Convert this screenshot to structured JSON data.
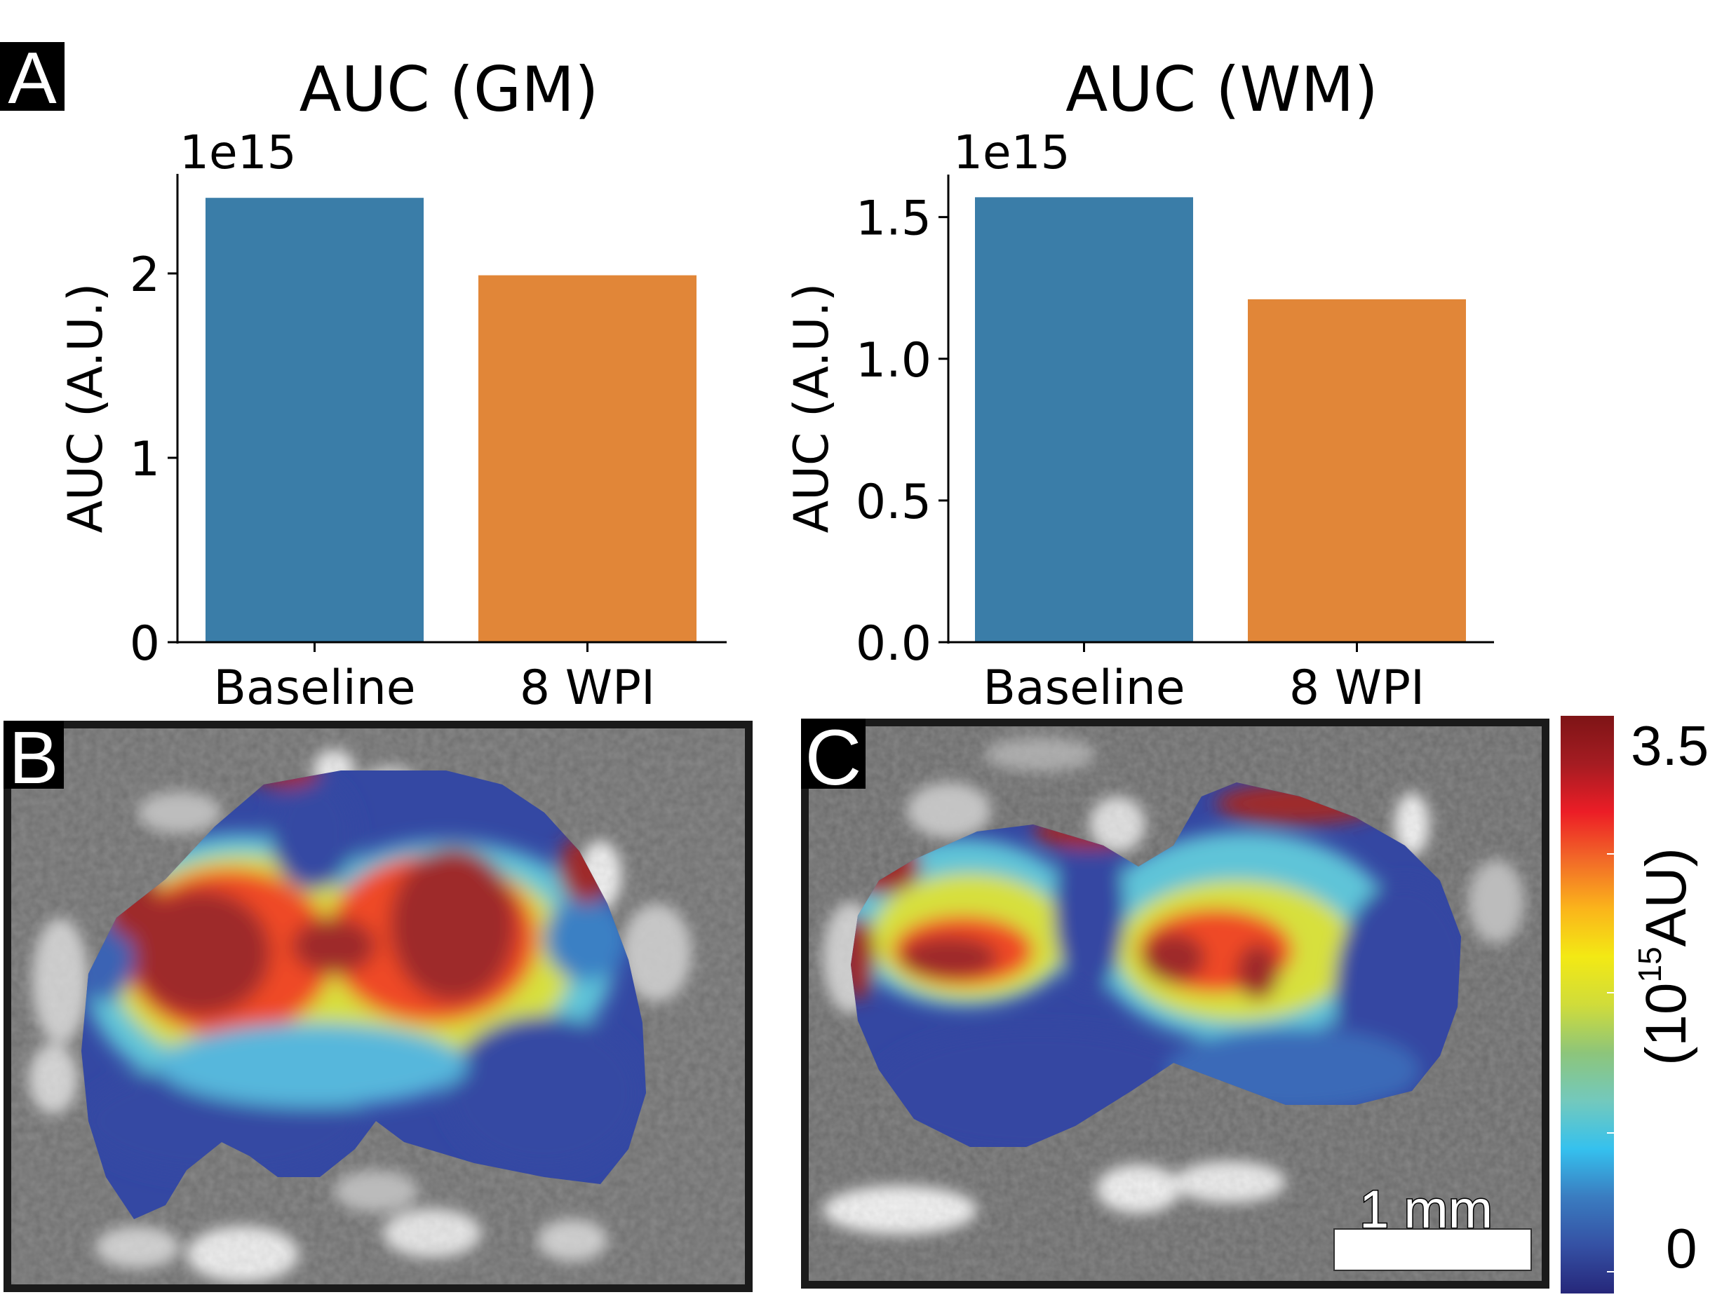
{
  "figure": {
    "panel_labels": {
      "a": "A",
      "b": "B",
      "c": "C"
    },
    "colors": {
      "baseline": "#3a7da8",
      "wpi": "#e18638",
      "axis": "#000000",
      "panel_border": "#1a1a1a"
    }
  },
  "chart_data": [
    {
      "type": "bar",
      "title": "AUC (GM)",
      "ylabel": "AUC (A.U.)",
      "xlabel": "",
      "offset_label": "1e15",
      "categories": [
        "Baseline",
        "8 WPI"
      ],
      "values": [
        2.41,
        1.99
      ],
      "value_multiplier": 1000000000000000.0,
      "ylim": [
        0,
        2.54
      ],
      "yticks": [
        0,
        1,
        2
      ],
      "ytick_labels": [
        "0",
        "1",
        "2"
      ],
      "grid": false,
      "bar_colors": [
        "#3a7da8",
        "#e18638"
      ]
    },
    {
      "type": "bar",
      "title": "AUC (WM)",
      "ylabel": "AUC (A.U.)",
      "xlabel": "",
      "offset_label": "1e15",
      "categories": [
        "Baseline",
        "8 WPI"
      ],
      "values": [
        1.57,
        1.21
      ],
      "value_multiplier": 1000000000000000.0,
      "ylim": [
        0,
        1.65
      ],
      "yticks": [
        0,
        0.5,
        1.0,
        1.5
      ],
      "ytick_labels": [
        "0.0",
        "0.5",
        "1.0",
        "1.5"
      ],
      "grid": false,
      "bar_colors": [
        "#3a7da8",
        "#e18638"
      ]
    }
  ],
  "maps": {
    "b": {
      "description": "AUC heat map overlay on grayscale image (grey matter)"
    },
    "c": {
      "description": "AUC heat map overlay on grayscale image (white matter)",
      "scale_bar_label": "1 mm"
    }
  },
  "colorbar": {
    "max_label": "3.5",
    "min_label": "0",
    "unit_prefix": "(10",
    "unit_exponent": "15",
    "unit_suffix": "AU)",
    "range": [
      0,
      3.5
    ],
    "stops": [
      "#26277a",
      "#3551a4",
      "#3a7cc0",
      "#35c1ee",
      "#73c9bd",
      "#8dc57a",
      "#d0dc3a",
      "#f3e914",
      "#fbb41b",
      "#f26a28",
      "#ec1d26",
      "#a51c22",
      "#7e1416"
    ]
  }
}
